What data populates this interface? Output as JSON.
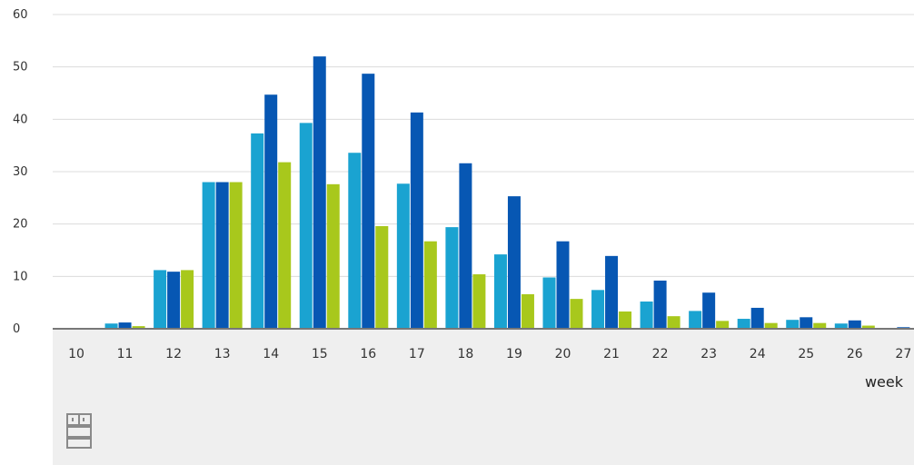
{
  "chart_data": {
    "type": "bar",
    "xlabel": "week",
    "ylabel": "",
    "ylim": [
      0,
      60
    ],
    "yticks": [
      0,
      10,
      20,
      30,
      40,
      50,
      60
    ],
    "grid": true,
    "categories": [
      "10",
      "11",
      "12",
      "13",
      "14",
      "15",
      "16",
      "17",
      "18",
      "19",
      "20",
      "21",
      "22",
      "23",
      "24",
      "25",
      "26",
      "27"
    ],
    "series": [
      {
        "color": "#1aa3d1",
        "values": [
          0,
          1,
          11.2,
          28,
          37.3,
          39.3,
          33.6,
          27.7,
          19.4,
          14.2,
          9.8,
          7.4,
          5.2,
          3.4,
          1.9,
          1.7,
          1.0,
          0
        ]
      },
      {
        "color": "#0757b3",
        "values": [
          0,
          1.2,
          10.9,
          28,
          44.7,
          52,
          48.7,
          41.3,
          31.6,
          25.3,
          16.7,
          13.9,
          9.2,
          6.9,
          4.0,
          2.2,
          1.6,
          0.3
        ]
      },
      {
        "color": "#a8c81c",
        "values": [
          0,
          0.5,
          11.2,
          28,
          31.8,
          27.6,
          19.6,
          16.7,
          10.4,
          6.6,
          5.7,
          3.3,
          2.4,
          1.5,
          1.1,
          1.1,
          0.6,
          0
        ]
      }
    ],
    "colors": {
      "grid": "#dcdcdc",
      "baseline": "#777777",
      "footer_bg": "#efefef",
      "logo": "#8a8a8a"
    }
  }
}
